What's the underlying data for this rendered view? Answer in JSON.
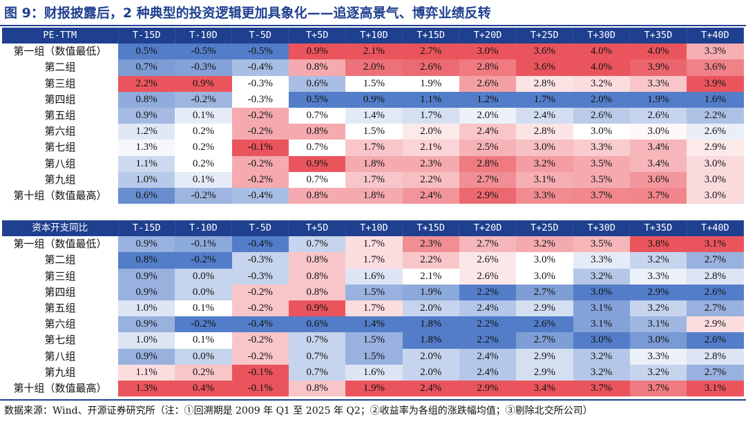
{
  "title": "图 9：财报披露后，2 种典型的投资逻辑更加具象化——追逐高景气、博弈业绩反转",
  "source": "数据来源：Wind、开源证券研究所（注：①回溯期是 2009 年 Q1 至 2025 年 Q2；②收益率为各组的涨跌幅均值；③剔除北交所公司）",
  "colors": {
    "header": "#1f3f8f",
    "low": "#4472c4",
    "high": "#e8464f",
    "mid": "#ffffff"
  },
  "chart_data": [
    {
      "type": "heatmap",
      "title": "PE-TTM",
      "categories": [
        "T-15D",
        "T-10D",
        "T-5D",
        "T+5D",
        "T+10D",
        "T+15D",
        "T+20D",
        "T+25D",
        "T+30D",
        "T+35D",
        "T+40D"
      ],
      "row_labels": [
        "第一组（数值最低）",
        "第二组",
        "第三组",
        "第四组",
        "第五组",
        "第六组",
        "第七组",
        "第八组",
        "第九组",
        "第十组（数值最高）"
      ],
      "values": [
        [
          0.5,
          -0.5,
          -0.5,
          0.9,
          2.1,
          2.7,
          3.0,
          3.6,
          4.0,
          4.0,
          3.3
        ],
        [
          0.7,
          -0.3,
          -0.4,
          0.8,
          2.0,
          2.6,
          2.8,
          3.6,
          4.0,
          3.9,
          3.6
        ],
        [
          2.2,
          0.9,
          -0.3,
          0.6,
          1.5,
          1.9,
          2.6,
          2.8,
          3.2,
          3.3,
          3.9
        ],
        [
          0.8,
          -0.2,
          -0.3,
          0.5,
          0.9,
          1.1,
          1.2,
          1.7,
          2.0,
          1.9,
          1.6
        ],
        [
          0.9,
          0.1,
          -0.2,
          0.7,
          1.4,
          1.7,
          2.0,
          2.4,
          2.6,
          2.6,
          2.2
        ],
        [
          1.2,
          0.2,
          -0.2,
          0.8,
          1.5,
          2.0,
          2.4,
          2.8,
          3.0,
          3.0,
          2.6
        ],
        [
          1.3,
          0.2,
          -0.1,
          0.7,
          1.7,
          2.1,
          2.5,
          3.0,
          3.3,
          3.4,
          2.9
        ],
        [
          1.1,
          0.2,
          -0.2,
          0.9,
          1.8,
          2.3,
          2.8,
          3.2,
          3.5,
          3.4,
          3.0
        ],
        [
          1.0,
          0.1,
          -0.2,
          0.7,
          1.7,
          2.2,
          2.7,
          3.1,
          3.5,
          3.6,
          3.0
        ],
        [
          0.6,
          -0.2,
          -0.4,
          0.8,
          1.8,
          2.4,
          2.9,
          3.3,
          3.7,
          3.7,
          3.0
        ]
      ],
      "unit": "%"
    },
    {
      "type": "heatmap",
      "title": "资本开支同比",
      "categories": [
        "T-15D",
        "T-10D",
        "T-5D",
        "T+5D",
        "T+10D",
        "T+15D",
        "T+20D",
        "T+25D",
        "T+30D",
        "T+35D",
        "T+40D"
      ],
      "row_labels": [
        "第一组（数值最低）",
        "第二组",
        "第三组",
        "第四组",
        "第五组",
        "第六组",
        "第七组",
        "第八组",
        "第九组",
        "第十组（数值最高）"
      ],
      "values": [
        [
          0.9,
          -0.1,
          -0.4,
          0.7,
          1.7,
          2.3,
          2.7,
          3.2,
          3.5,
          3.8,
          3.1
        ],
        [
          0.8,
          -0.2,
          -0.3,
          0.8,
          1.7,
          2.2,
          2.6,
          3.0,
          3.3,
          3.2,
          2.7
        ],
        [
          0.9,
          0.0,
          -0.3,
          0.8,
          1.6,
          2.1,
          2.6,
          3.0,
          3.2,
          3.3,
          2.8
        ],
        [
          0.9,
          0.0,
          -0.2,
          0.8,
          1.5,
          1.9,
          2.2,
          2.7,
          3.0,
          2.9,
          2.6
        ],
        [
          1.0,
          0.1,
          -0.2,
          0.9,
          1.7,
          2.0,
          2.4,
          2.9,
          3.1,
          3.2,
          2.7
        ],
        [
          0.9,
          -0.2,
          -0.4,
          0.6,
          1.4,
          1.8,
          2.2,
          2.6,
          3.1,
          3.1,
          2.9
        ],
        [
          1.0,
          0.1,
          -0.2,
          0.7,
          1.5,
          1.8,
          2.2,
          2.7,
          3.0,
          3.0,
          2.6
        ],
        [
          0.9,
          0.0,
          -0.2,
          0.7,
          1.5,
          2.0,
          2.4,
          2.9,
          3.2,
          3.3,
          2.8
        ],
        [
          1.1,
          0.2,
          -0.1,
          0.7,
          1.6,
          2.0,
          2.4,
          2.9,
          3.2,
          3.2,
          2.7
        ],
        [
          1.3,
          0.4,
          -0.1,
          0.8,
          1.9,
          2.4,
          2.9,
          3.4,
          3.7,
          3.7,
          3.1
        ]
      ],
      "unit": "%"
    }
  ]
}
